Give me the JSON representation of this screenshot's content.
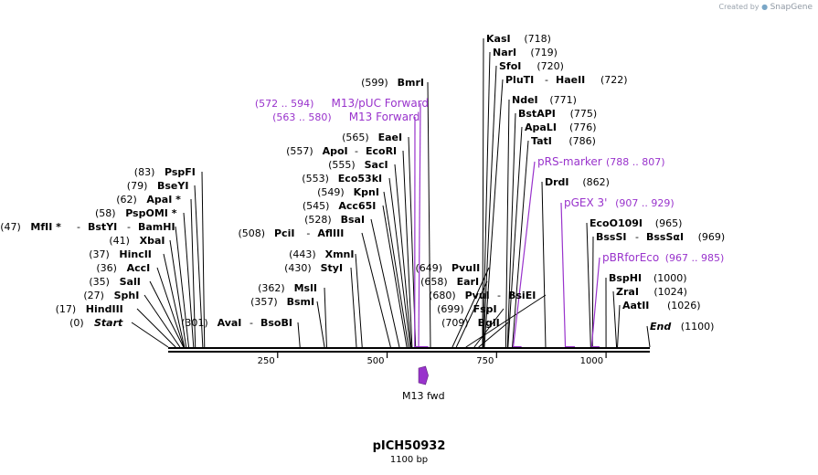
{
  "credit": {
    "prefix": "Created by",
    "brand": "SnapGene"
  },
  "title": "pICH50932",
  "subtitle": "1100 bp",
  "sequence_length": 1100,
  "colors": {
    "enzyme": "#000000",
    "feature": "#9933cc",
    "backbone": "#000000"
  },
  "axis_ticks": [
    250,
    500,
    750,
    1000
  ],
  "feature_track": [
    {
      "label": "M13 fwd",
      "start": 572,
      "end": 594
    }
  ],
  "left_labels": [
    {
      "pos": "(83)",
      "names": [
        "PspFI"
      ],
      "site": 83
    },
    {
      "pos": "(79)",
      "names": [
        "BseYI"
      ],
      "site": 79
    },
    {
      "pos": "(62)",
      "names": [
        "ApaI *"
      ],
      "site": 62
    },
    {
      "pos": "(58)",
      "names": [
        "PspOMI *"
      ],
      "site": 58
    },
    {
      "pos": "(47)",
      "names": [
        "MfII *",
        "BstYI",
        "BamHI"
      ],
      "site": 47
    },
    {
      "pos": "(41)",
      "names": [
        "XbaI"
      ],
      "site": 41
    },
    {
      "pos": "(37)",
      "names": [
        "HincII"
      ],
      "site": 37
    },
    {
      "pos": "(36)",
      "names": [
        "AccI"
      ],
      "site": 36
    },
    {
      "pos": "(35)",
      "names": [
        "SalI"
      ],
      "site": 35
    },
    {
      "pos": "(27)",
      "names": [
        "SphI"
      ],
      "site": 27
    },
    {
      "pos": "(17)",
      "names": [
        "HindIII"
      ],
      "site": 17
    },
    {
      "pos": "(0)",
      "names": [
        "Start"
      ],
      "site": 0,
      "italic": true
    },
    {
      "pos": "(301)",
      "names": [
        "AvaI",
        "BsoBI"
      ],
      "site": 301
    },
    {
      "pos": "(362)",
      "names": [
        "MslI"
      ],
      "site": 362
    },
    {
      "pos": "(357)",
      "names": [
        "BsmI"
      ],
      "site": 357
    },
    {
      "pos": "(443)",
      "names": [
        "XmnI"
      ],
      "site": 443
    },
    {
      "pos": "(430)",
      "names": [
        "StyI"
      ],
      "site": 430
    },
    {
      "pos": "(508)",
      "names": [
        "PciI",
        "AflIII"
      ],
      "site": 508
    },
    {
      "pos": "(528)",
      "names": [
        "BsaI"
      ],
      "site": 528
    },
    {
      "pos": "(545)",
      "names": [
        "Acc65I"
      ],
      "site": 545
    },
    {
      "pos": "(549)",
      "names": [
        "KpnI"
      ],
      "site": 549
    },
    {
      "pos": "(553)",
      "names": [
        "Eco53kI"
      ],
      "site": 553
    },
    {
      "pos": "(555)",
      "names": [
        "SacI"
      ],
      "site": 555
    },
    {
      "pos": "(557)",
      "names": [
        "ApoI",
        "EcoRI"
      ],
      "site": 557
    },
    {
      "pos": "(565)",
      "names": [
        "EaeI"
      ],
      "site": 565
    },
    {
      "pos": "(599)",
      "names": [
        "BmrI"
      ],
      "site": 599
    },
    {
      "pos": "(649)",
      "names": [
        "PvuII"
      ],
      "site": 649
    },
    {
      "pos": "(658)",
      "names": [
        "EarI"
      ],
      "site": 658
    },
    {
      "pos": "(680)",
      "names": [
        "PvuI",
        "BsiEI"
      ],
      "site": 680
    },
    {
      "pos": "(699)",
      "names": [
        "FspI"
      ],
      "site": 699
    },
    {
      "pos": "(709)",
      "names": [
        "BglI"
      ],
      "site": 709
    }
  ],
  "left_features": [
    {
      "pos": "(572 .. 594)",
      "name": "M13/pUC Forward",
      "start": 572,
      "end": 594
    },
    {
      "pos": "(563 .. 580)",
      "name": "M13 Forward",
      "start": 563,
      "end": 580
    }
  ],
  "right_labels": [
    {
      "names": [
        "KasI"
      ],
      "pos": "(718)",
      "site": 718
    },
    {
      "names": [
        "NarI"
      ],
      "pos": "(719)",
      "site": 719
    },
    {
      "names": [
        "SfoI"
      ],
      "pos": "(720)",
      "site": 720
    },
    {
      "names": [
        "PluTI",
        "HaeII"
      ],
      "pos": "(722)",
      "site": 722
    },
    {
      "names": [
        "NdeI"
      ],
      "pos": "(771)",
      "site": 771
    },
    {
      "names": [
        "BstAPI"
      ],
      "pos": "(775)",
      "site": 775
    },
    {
      "names": [
        "ApaLI"
      ],
      "pos": "(776)",
      "site": 776
    },
    {
      "names": [
        "TatI"
      ],
      "pos": "(786)",
      "site": 786
    },
    {
      "names": [
        "DrdI"
      ],
      "pos": "(862)",
      "site": 862
    },
    {
      "names": [
        "EcoO109I"
      ],
      "pos": "(965)",
      "site": 965
    },
    {
      "names": [
        "BssSI",
        "BssSαI"
      ],
      "pos": "(969)",
      "site": 969
    },
    {
      "names": [
        "BspHI"
      ],
      "pos": "(1000)",
      "site": 1000
    },
    {
      "names": [
        "ZraI"
      ],
      "pos": "(1024)",
      "site": 1024
    },
    {
      "names": [
        "AatII"
      ],
      "pos": "(1026)",
      "site": 1026
    },
    {
      "names": [
        "End"
      ],
      "pos": "(1100)",
      "site": 1100,
      "italic": true
    }
  ],
  "right_features": [
    {
      "name": "pRS-marker",
      "pos": "(788 .. 807)",
      "start": 788,
      "end": 807
    },
    {
      "name": "pGEX 3'",
      "pos": "(907 .. 929)",
      "start": 907,
      "end": 929
    },
    {
      "name": "pBRforEco",
      "pos": "(967 .. 985)",
      "start": 967,
      "end": 985
    }
  ]
}
